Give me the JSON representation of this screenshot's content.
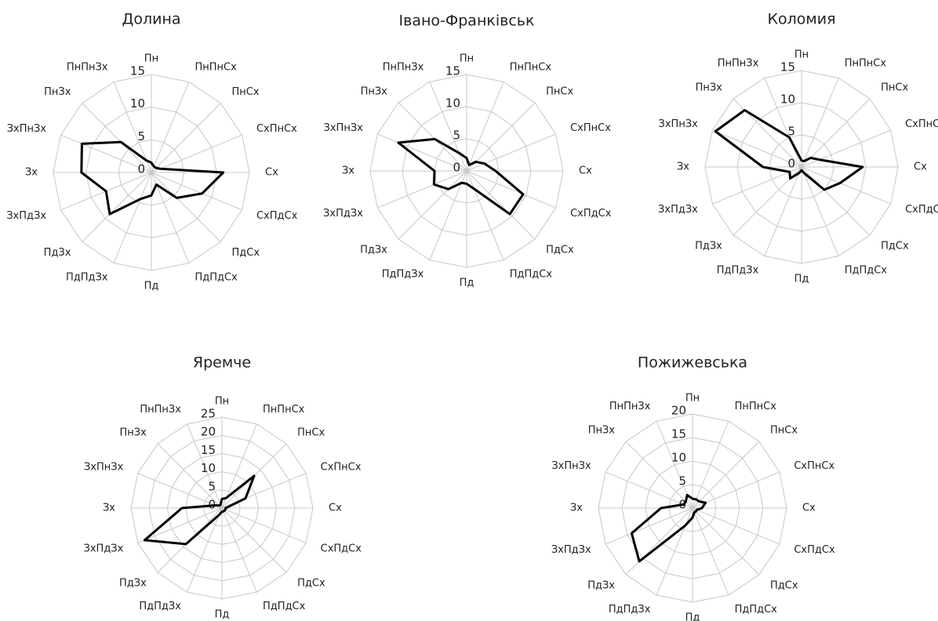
{
  "chart_data": [
    {
      "type": "radar",
      "title": "Долина",
      "color": "#000000",
      "categories": [
        "Пн",
        "ПнПнСх",
        "ПнСх",
        "СхПнСх",
        "Сх",
        "СхПдСх",
        "ПдСх",
        "ПдПдСх",
        "Пд",
        "ПдПдЗх",
        "ПдЗх",
        "ЗхПдЗх",
        "Зх",
        "ЗхПнЗх",
        "ПнЗх",
        "ПнПнЗх"
      ],
      "values": [
        1.5,
        1,
        1,
        1.5,
        11,
        8.4,
        5.5,
        2,
        3.5,
        4.4,
        9,
        7.5,
        10.7,
        11.5,
        6.6,
        2
      ],
      "ylim": [
        0,
        15
      ],
      "yticks": [
        0,
        5,
        10,
        15
      ],
      "grid": true
    },
    {
      "type": "radar",
      "title": "Івано-Франківськ",
      "color": "#000000",
      "categories": [
        "Пн",
        "ПнПнСх",
        "ПнСх",
        "СхПнСх",
        "Сх",
        "СхПдСх",
        "ПдСх",
        "ПдПдСх",
        "Пд",
        "ПдПдЗх",
        "ПдЗх",
        "ЗхПдЗх",
        "Зх",
        "ЗхПнЗх",
        "ПнЗх",
        "ПнПнЗх"
      ],
      "values": [
        2,
        1,
        2,
        3,
        4.5,
        9.5,
        9.5,
        3,
        2,
        2,
        4,
        5.5,
        5,
        11.5,
        7,
        3
      ],
      "ylim": [
        0,
        15
      ],
      "yticks": [
        0,
        5,
        10,
        15
      ],
      "grid": true
    },
    {
      "type": "radar",
      "title": "Коломия",
      "color": "#000000",
      "categories": [
        "Пн",
        "ПнПнСх",
        "ПнСх",
        "СхПнСх",
        "Сх",
        "СхПдСх",
        "ПдСх",
        "ПдПдСх",
        "Пд",
        "ПдПдЗх",
        "ПдЗх",
        "ЗхПдЗх",
        "Зх",
        "ЗхПнЗх",
        "ПнЗх",
        "ПнПнЗх"
      ],
      "values": [
        1,
        1,
        2,
        3,
        9.5,
        6.5,
        5,
        1,
        0.5,
        1,
        2.5,
        2,
        6,
        14.5,
        12.5,
        5
      ],
      "ylim": [
        0,
        15
      ],
      "yticks": [
        0,
        5,
        10,
        15
      ],
      "grid": true
    },
    {
      "type": "radar",
      "title": "Яремче",
      "color": "#000000",
      "categories": [
        "Пн",
        "ПнПнСх",
        "ПнСх",
        "СхПнСх",
        "Сх",
        "СхПдСх",
        "ПдСх",
        "ПдПдСх",
        "Пд",
        "ПдПдЗх",
        "ПдЗх",
        "ЗхПдЗх",
        "Зх",
        "ЗхПнЗх",
        "ПнЗх",
        "ПнПнЗх"
      ],
      "values": [
        2.5,
        3,
        12.5,
        7,
        1,
        1,
        1,
        1,
        1,
        2,
        14,
        23,
        11,
        2,
        1,
        1
      ],
      "ylim": [
        0,
        25
      ],
      "yticks": [
        0,
        5,
        10,
        15,
        20,
        25
      ],
      "grid": true
    },
    {
      "type": "radar",
      "title": "Пожижевська",
      "color": "#000000",
      "categories": [
        "Пн",
        "ПнПнСх",
        "ПнСх",
        "СхПнСх",
        "Сх",
        "СхПдСх",
        "ПдСх",
        "ПдПдСх",
        "Пд",
        "ПдПдЗх",
        "ПдЗх",
        "ЗхПдЗх",
        "Зх",
        "ЗхПнЗх",
        "ПнЗх",
        "ПнПнЗх"
      ],
      "values": [
        2,
        2,
        2,
        3,
        2,
        1,
        1,
        1,
        2,
        4,
        16,
        14,
        6.7,
        2,
        2,
        3
      ],
      "ylim": [
        0,
        20
      ],
      "yticks": [
        0,
        5,
        10,
        15,
        20
      ],
      "grid": true
    }
  ]
}
